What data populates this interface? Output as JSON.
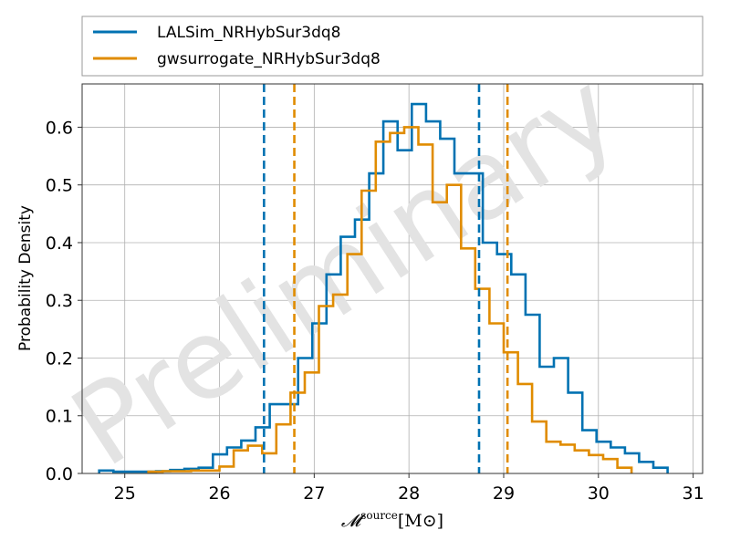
{
  "colors": {
    "series_lalsim": "#0072b2",
    "series_gwsurrogate": "#e08c00",
    "grid": "#b0b0b0",
    "watermark": "#dcdcdc"
  },
  "chart_data": {
    "type": "histogram",
    "title": "",
    "xlabel_main": "𝓜",
    "xlabel_sup": "source",
    "xlabel_units": "[M⊙]",
    "ylabel": "Probability Density",
    "watermark": "Preliminary",
    "xlim": [
      24.55,
      31.1
    ],
    "ylim": [
      0,
      0.675
    ],
    "xticks": [
      25,
      26,
      27,
      28,
      29,
      30,
      31
    ],
    "yticks": [
      0.0,
      0.1,
      0.2,
      0.3,
      0.4,
      0.5,
      0.6
    ],
    "ytick_labels": [
      "0.0",
      "0.1",
      "0.2",
      "0.3",
      "0.4",
      "0.5",
      "0.6"
    ],
    "grid": true,
    "legend_position": "above-plot",
    "series": [
      {
        "name": "LALSim_NRHybSur3dq8",
        "color": "#0072b2",
        "bin_edges": [
          24.73,
          24.88,
          25.03,
          25.18,
          25.33,
          25.48,
          25.63,
          25.78,
          25.93,
          26.08,
          26.23,
          26.38,
          26.53,
          26.68,
          26.83,
          26.98,
          27.13,
          27.28,
          27.43,
          27.58,
          27.73,
          27.88,
          28.03,
          28.18,
          28.33,
          28.48,
          28.63,
          28.78,
          28.93,
          29.08,
          29.23,
          29.38,
          29.53,
          29.68,
          29.83,
          29.98,
          30.13,
          30.28,
          30.43,
          30.58,
          30.73
        ],
        "density": [
          0.005,
          0.003,
          0.003,
          0.003,
          0.004,
          0.006,
          0.008,
          0.01,
          0.033,
          0.045,
          0.057,
          0.08,
          0.12,
          0.12,
          0.2,
          0.26,
          0.345,
          0.41,
          0.44,
          0.52,
          0.61,
          0.56,
          0.64,
          0.61,
          0.58,
          0.52,
          0.52,
          0.4,
          0.38,
          0.345,
          0.275,
          0.185,
          0.2,
          0.14,
          0.075,
          0.055,
          0.045,
          0.035,
          0.02,
          0.01
        ],
        "credible_interval": [
          26.47,
          28.74
        ]
      },
      {
        "name": "gwsurrogate_NRHybSur3dq8",
        "color": "#e08c00",
        "bin_edges": [
          25.25,
          25.4,
          25.55,
          25.7,
          25.85,
          26.0,
          26.15,
          26.3,
          26.45,
          26.6,
          26.75,
          26.9,
          27.05,
          27.2,
          27.35,
          27.5,
          27.65,
          27.8,
          27.95,
          28.1,
          28.25,
          28.4,
          28.55,
          28.7,
          28.85,
          29.0,
          29.15,
          29.3,
          29.45,
          29.6,
          29.75,
          29.9,
          30.05,
          30.2,
          30.35
        ],
        "density": [
          0.003,
          0.004,
          0.004,
          0.005,
          0.005,
          0.012,
          0.04,
          0.048,
          0.035,
          0.085,
          0.14,
          0.175,
          0.29,
          0.31,
          0.38,
          0.49,
          0.575,
          0.59,
          0.6,
          0.57,
          0.47,
          0.5,
          0.39,
          0.32,
          0.26,
          0.21,
          0.155,
          0.09,
          0.055,
          0.05,
          0.04,
          0.032,
          0.025,
          0.01
        ],
        "credible_interval": [
          26.79,
          29.04
        ]
      }
    ]
  }
}
